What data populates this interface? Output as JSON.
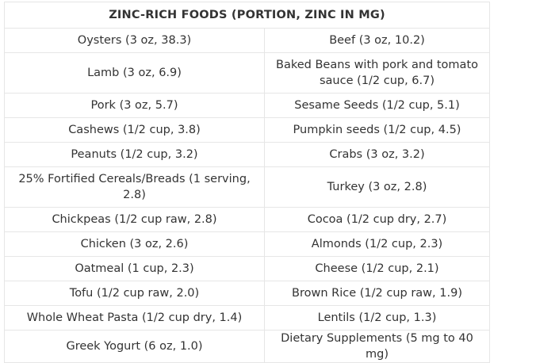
{
  "table": {
    "title": "ZINC-RICH FOODS (PORTION, ZINC IN MG)",
    "rows": [
      {
        "left": "Oysters (3 oz, 38.3)",
        "right": "Beef (3 oz, 10.2)"
      },
      {
        "left": "Lamb (3 oz, 6.9)",
        "right": "Baked Beans with pork and tomato sauce (1/2 cup, 6.7)"
      },
      {
        "left": "Pork (3 oz, 5.7)",
        "right": "Sesame Seeds (1/2 cup, 5.1)"
      },
      {
        "left": "Cashews (1/2 cup, 3.8)",
        "right": "Pumpkin seeds (1/2 cup, 4.5)"
      },
      {
        "left": "Peanuts (1/2 cup, 3.2)",
        "right": "Crabs (3 oz, 3.2)"
      },
      {
        "left": "25% Fortified Cereals/Breads (1 serving, 2.8)",
        "right": "Turkey (3 oz, 2.8)"
      },
      {
        "left": "Chickpeas (1/2 cup raw, 2.8)",
        "right": "Cocoa (1/2 cup dry, 2.7)"
      },
      {
        "left": "Chicken (3 oz, 2.6)",
        "right": "Almonds (1/2 cup, 2.3)"
      },
      {
        "left": "Oatmeal (1 cup, 2.3)",
        "right": "Cheese (1/2 cup, 2.1)"
      },
      {
        "left": "Tofu (1/2 cup raw, 2.0)",
        "right": "Brown Rice (1/2 cup raw, 1.9)"
      },
      {
        "left": "Whole Wheat Pasta (1/2 cup dry, 1.4)",
        "right": "Lentils (1/2 cup, 1.3)"
      },
      {
        "left": "Greek Yogurt (6 oz, 1.0)",
        "right": "Dietary Supplements (5 mg to 40 mg)"
      }
    ]
  }
}
